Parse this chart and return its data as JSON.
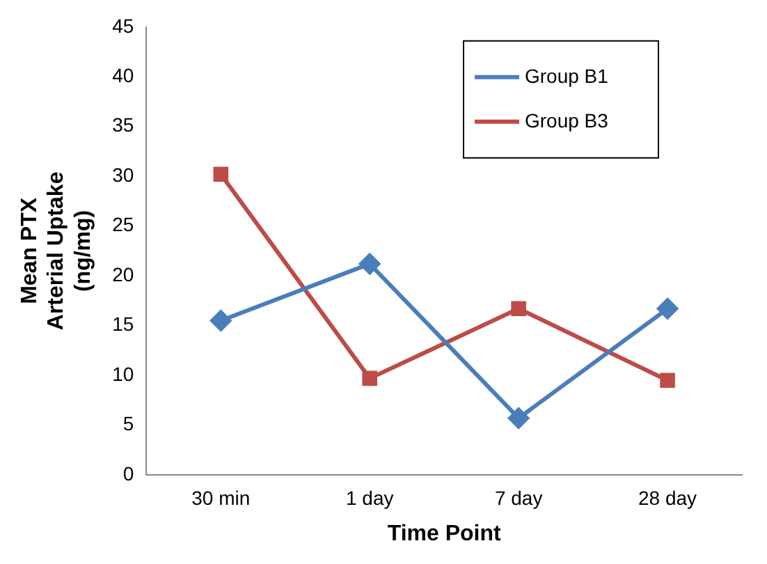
{
  "chart_data": {
    "type": "line",
    "xlabel": "Time Point",
    "ylabel": "Mean PTX\nArterial Uptake\n(ng/mg)",
    "categories": [
      "30 min",
      "1 day",
      "7 day",
      "28 day"
    ],
    "series": [
      {
        "name": "Group B1",
        "color": "#4a7ebb",
        "marker": "diamond",
        "values": [
          15.5,
          21.2,
          5.7,
          16.7
        ]
      },
      {
        "name": "Group B3",
        "color": "#be4b48",
        "marker": "square",
        "values": [
          30.2,
          9.7,
          16.7,
          9.5
        ]
      }
    ],
    "ylim": [
      0,
      45
    ],
    "yticks": [
      0,
      5,
      10,
      15,
      20,
      25,
      30,
      35,
      40,
      45
    ],
    "grid": false,
    "legend": "top right"
  }
}
